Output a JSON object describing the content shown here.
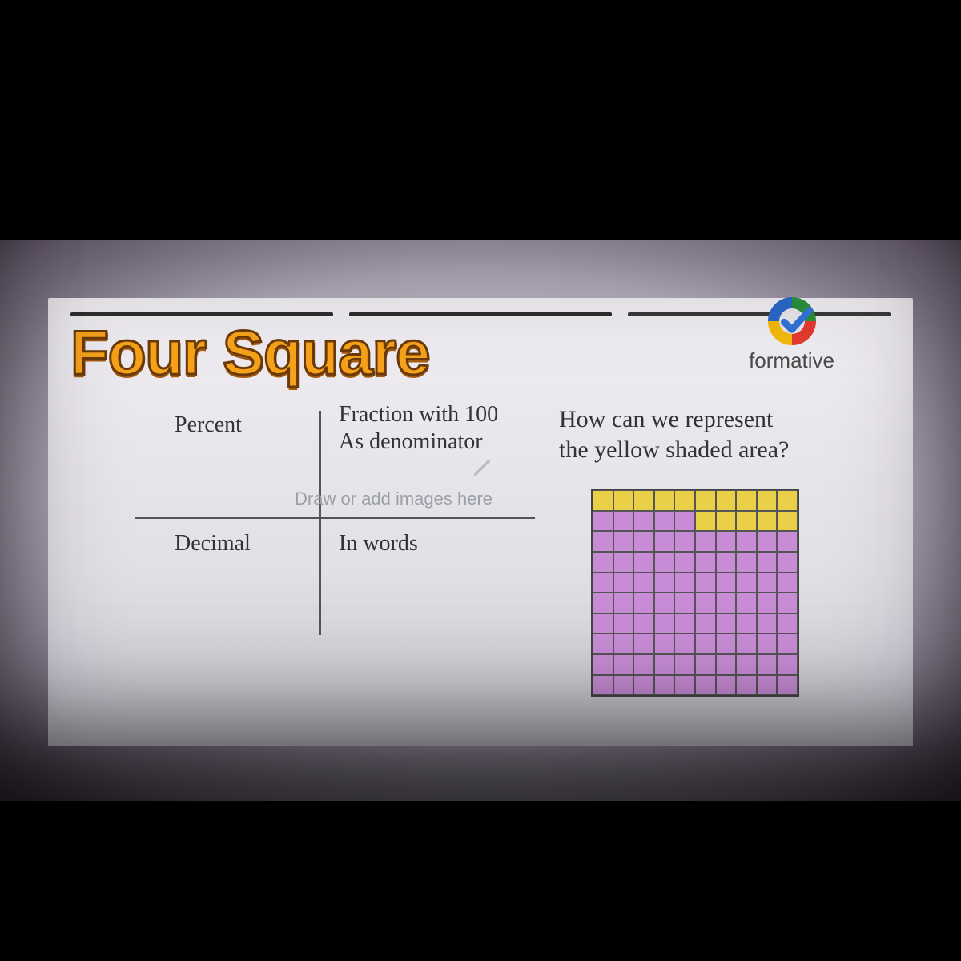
{
  "title": "Four Square",
  "brand": {
    "name": "formative"
  },
  "quadrants": {
    "percent": "Percent",
    "fraction_line1": "Fraction with 100",
    "fraction_line2": "As denominator",
    "decimal": "Decimal",
    "in_words": "In words"
  },
  "placeholder": "Draw or add images here",
  "question_line1": "How can we represent",
  "question_line2": "the yellow shaded area?",
  "grid": {
    "rows": 10,
    "cols": 10,
    "yellow_count": 15,
    "yellow_color": "#ead049",
    "purple_color": "#c88cd6",
    "gridline_color": "#555555",
    "pattern_note": "row0 all yellow (10), row1 cols5-9 yellow (5), rest purple"
  },
  "styling": {
    "title_color": "#f6a21a",
    "title_stroke": "#6b3a0a",
    "background_gradient": [
      "#d8d8e2",
      "#6c6472"
    ],
    "worksheet_bg": "#e8e6ec",
    "rule_color": "#2e2e2e",
    "text_color": "#333333",
    "placeholder_color": "#9aa0a6",
    "logo_ring_colors": [
      "#2a8f3a",
      "#e43a2e",
      "#f2b90c",
      "#2868c8"
    ],
    "logo_check_color": "#2f6fd0"
  }
}
